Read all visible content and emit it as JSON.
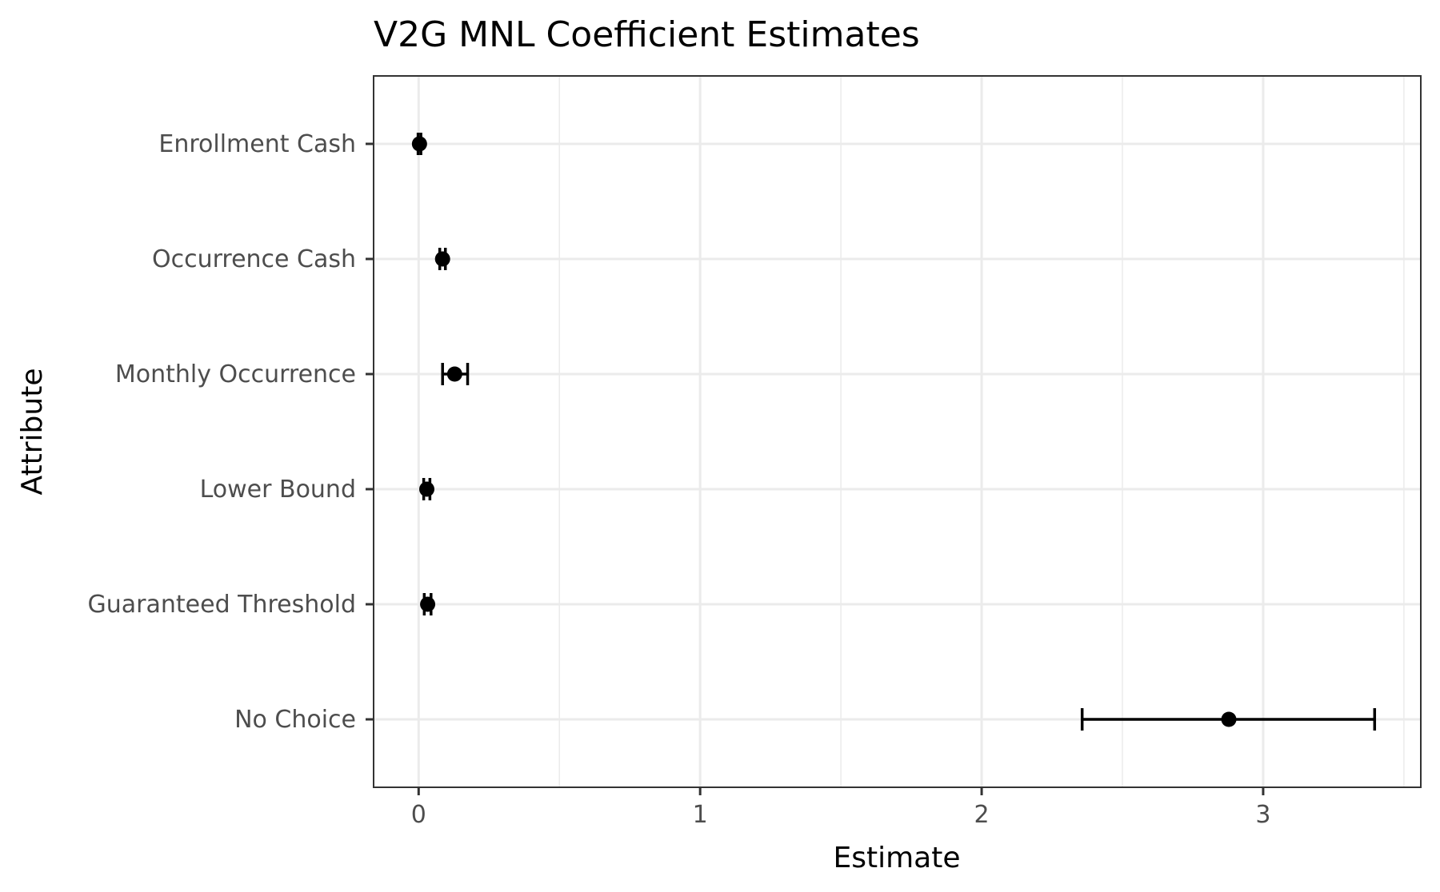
{
  "chart_data": {
    "type": "errorbar",
    "title": "V2G MNL Coefficient Estimates",
    "xlabel": "Estimate",
    "ylabel": "Attribute",
    "xlim": [
      -0.16,
      3.56
    ],
    "xticks": [
      0,
      1,
      2,
      3
    ],
    "xtick_labels": [
      "0",
      "1",
      "2",
      "3"
    ],
    "grid": true,
    "categories": [
      "Enrollment Cash",
      "Occurrence Cash",
      "Monthly Occurrence",
      "Lower Bound",
      "Guaranteed Threshold",
      "No Choice"
    ],
    "estimates": [
      0.003,
      0.085,
      0.128,
      0.029,
      0.032,
      2.878
    ],
    "lower": [
      -0.002,
      0.075,
      0.085,
      0.018,
      0.02,
      2.357
    ],
    "upper": [
      0.008,
      0.095,
      0.174,
      0.04,
      0.044,
      3.396
    ],
    "colors": {
      "point": "#000000",
      "grid": "#ebebeb",
      "border": "#333333"
    }
  }
}
